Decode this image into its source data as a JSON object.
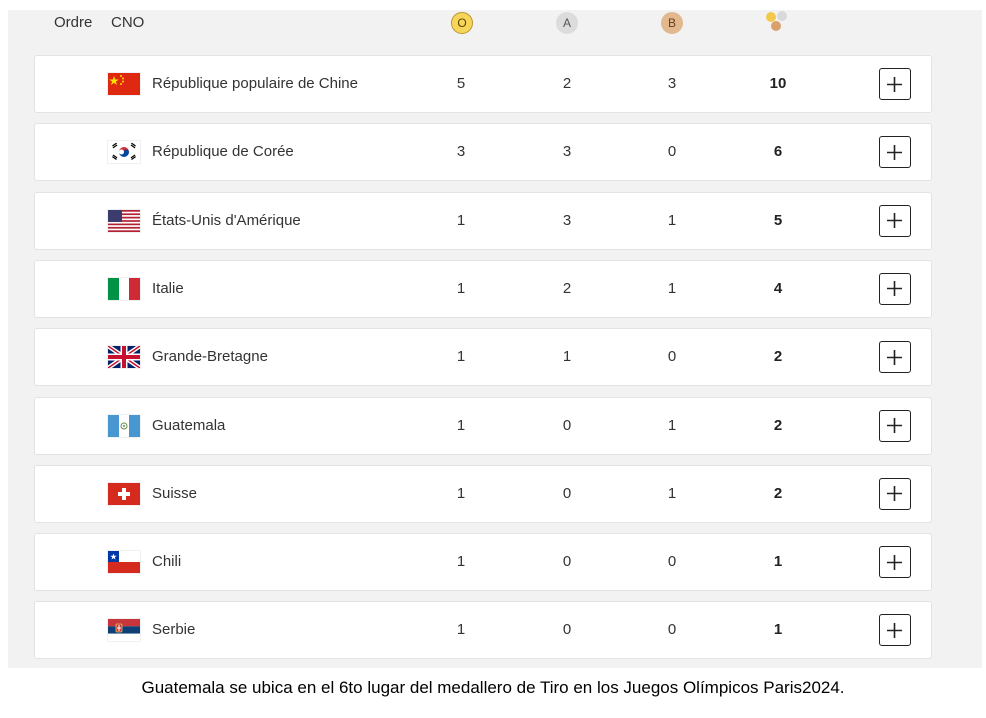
{
  "header": {
    "order_label": "Ordre",
    "noc_label": "CNO",
    "gold_symbol": "O",
    "silver_symbol": "A",
    "bronze_symbol": "B"
  },
  "colors": {
    "gold": "#f7d55a",
    "silver": "#dcdcdc",
    "bronze": "#e2b88e",
    "panel_bg": "#f2f2f2",
    "row_bg": "#ffffff"
  },
  "rows": [
    {
      "country": "République populaire de Chine",
      "flag": "china-flag",
      "gold": "5",
      "silver": "2",
      "bronze": "3",
      "total": "10"
    },
    {
      "country": "République de Corée",
      "flag": "south-korea-flag",
      "gold": "3",
      "silver": "3",
      "bronze": "0",
      "total": "6"
    },
    {
      "country": "États-Unis d'Amérique",
      "flag": "usa-flag",
      "gold": "1",
      "silver": "3",
      "bronze": "1",
      "total": "5"
    },
    {
      "country": "Italie",
      "flag": "italy-flag",
      "gold": "1",
      "silver": "2",
      "bronze": "1",
      "total": "4"
    },
    {
      "country": "Grande-Bretagne",
      "flag": "great-britain-flag",
      "gold": "1",
      "silver": "1",
      "bronze": "0",
      "total": "2"
    },
    {
      "country": "Guatemala",
      "flag": "guatemala-flag",
      "gold": "1",
      "silver": "0",
      "bronze": "1",
      "total": "2"
    },
    {
      "country": "Suisse",
      "flag": "switzerland-flag",
      "gold": "1",
      "silver": "0",
      "bronze": "1",
      "total": "2"
    },
    {
      "country": "Chili",
      "flag": "chile-flag",
      "gold": "1",
      "silver": "0",
      "bronze": "0",
      "total": "1"
    },
    {
      "country": "Serbie",
      "flag": "serbia-flag",
      "gold": "1",
      "silver": "0",
      "bronze": "0",
      "total": "1"
    }
  ],
  "caption": "Guatemala se ubica en el 6to lugar del medallero de Tiro en los Juegos Olímpicos Paris2024."
}
